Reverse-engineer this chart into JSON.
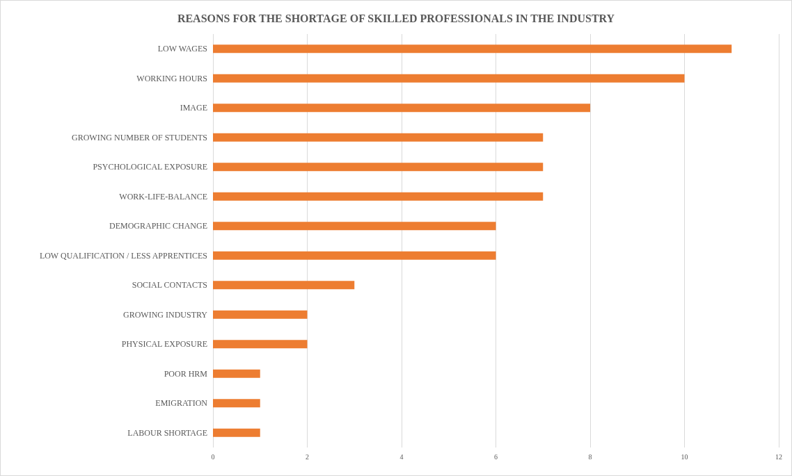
{
  "chart_data": {
    "type": "bar",
    "orientation": "horizontal",
    "title": "REASONS FOR THE SHORTAGE OF SKILLED PROFESSIONALS IN THE INDUSTRY",
    "categories": [
      "LOW WAGES",
      "WORKING HOURS",
      "IMAGE",
      "GROWING NUMBER OF STUDENTS",
      "PSYCHOLOGICAL EXPOSURE",
      "WORK-LIFE-BALANCE",
      "DEMOGRAPHIC CHANGE",
      "LOW QUALIFICATION / LESS APPRENTICES",
      "SOCIAL CONTACTS",
      "GROWING INDUSTRY",
      "PHYSICAL EXPOSURE",
      "POOR HRM",
      "EMIGRATION",
      "LABOUR SHORTAGE"
    ],
    "values": [
      11,
      10,
      8,
      7,
      7,
      7,
      6,
      6,
      3,
      2,
      2,
      1,
      1,
      1
    ],
    "color": "#ed7d31",
    "xlim": [
      0,
      12
    ],
    "xticks": [
      0,
      2,
      4,
      6,
      8,
      10,
      12
    ],
    "grid": "x"
  }
}
